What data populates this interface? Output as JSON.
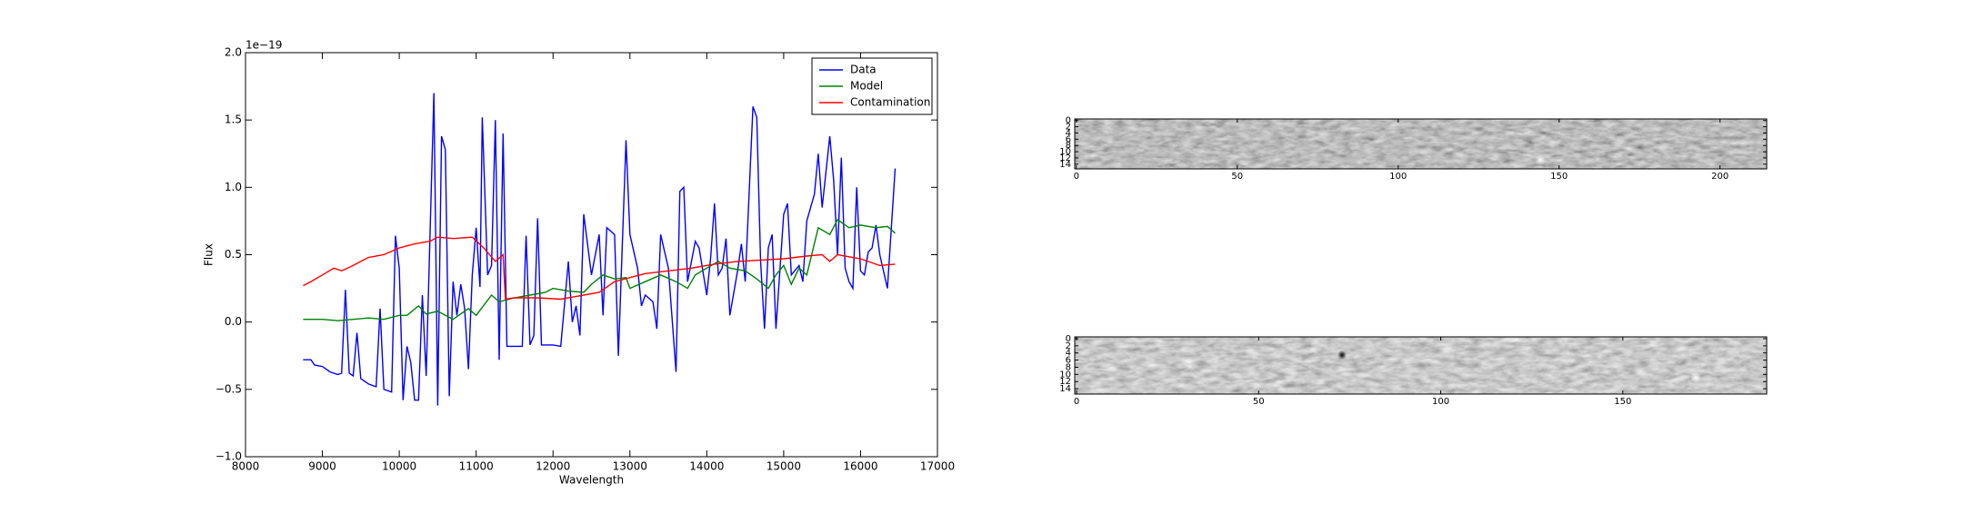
{
  "chart_data": [
    {
      "type": "line",
      "xlabel": "Wavelength",
      "ylabel": "Flux",
      "offset_label": "1e−19",
      "xlim": [
        8000,
        17000
      ],
      "xticks": [
        8000,
        9000,
        10000,
        11000,
        12000,
        13000,
        14000,
        15000,
        16000,
        17000
      ],
      "ylim": [
        -1.0,
        2.0
      ],
      "yticks": [
        {
          "value": -1.0,
          "label": "−1.0"
        },
        {
          "value": -0.5,
          "label": "−0.5"
        },
        {
          "value": 0.0,
          "label": "0.0"
        },
        {
          "value": 0.5,
          "label": "0.5"
        },
        {
          "value": 1.0,
          "label": "1.0"
        },
        {
          "value": 1.5,
          "label": "1.5"
        },
        {
          "value": 2.0,
          "label": "2.0"
        }
      ],
      "legend": "upper right",
      "series": [
        {
          "name": "Data",
          "color": "#0000ff",
          "x": [
            8750,
            8850,
            8900,
            9000,
            9100,
            9200,
            9250,
            9300,
            9350,
            9400,
            9450,
            9500,
            9600,
            9700,
            9750,
            9800,
            9900,
            9950,
            10000,
            10050,
            10100,
            10150,
            10200,
            10250,
            10300,
            10350,
            10450,
            10500,
            10550,
            10600,
            10650,
            10700,
            10750,
            10800,
            10850,
            10900,
            10950,
            11000,
            11050,
            11080,
            11150,
            11200,
            11250,
            11300,
            11350,
            11400,
            11500,
            11600,
            11650,
            11700,
            11750,
            11800,
            11850,
            12000,
            12100,
            12200,
            12250,
            12300,
            12350,
            12400,
            12500,
            12600,
            12650,
            12700,
            12800,
            12850,
            12950,
            13000,
            13100,
            13150,
            13200,
            13300,
            13350,
            13400,
            13500,
            13600,
            13650,
            13700,
            13750,
            13850,
            13900,
            14000,
            14050,
            14100,
            14150,
            14200,
            14250,
            14300,
            14400,
            14450,
            14500,
            14600,
            14650,
            14700,
            14750,
            14800,
            14850,
            14900,
            15000,
            15050,
            15100,
            15200,
            15250,
            15300,
            15400,
            15450,
            15500,
            15600,
            15650,
            15700,
            15750,
            15800,
            15850,
            15900,
            15950,
            16000,
            16050,
            16100,
            16150,
            16200,
            16250,
            16350,
            16400,
            16450
          ],
          "values": [
            -0.28,
            -0.28,
            -0.32,
            -0.33,
            -0.37,
            -0.39,
            -0.38,
            0.24,
            -0.38,
            -0.4,
            -0.08,
            -0.42,
            -0.46,
            -0.48,
            0.1,
            -0.5,
            -0.52,
            0.64,
            0.4,
            -0.58,
            -0.18,
            -0.3,
            -0.58,
            -0.58,
            0.2,
            -0.4,
            1.7,
            -0.62,
            1.38,
            1.28,
            -0.55,
            0.3,
            0.05,
            0.28,
            0.1,
            -0.35,
            0.35,
            0.7,
            0.26,
            1.52,
            0.35,
            0.42,
            1.5,
            -0.28,
            1.4,
            -0.18,
            -0.18,
            -0.18,
            0.64,
            -0.17,
            -0.1,
            0.77,
            -0.17,
            -0.17,
            -0.18,
            0.45,
            0.0,
            0.12,
            -0.1,
            0.8,
            0.35,
            0.65,
            0.05,
            0.7,
            0.65,
            -0.25,
            1.35,
            0.65,
            0.4,
            0.12,
            0.2,
            0.15,
            -0.05,
            0.65,
            0.4,
            -0.37,
            0.97,
            1.0,
            0.3,
            0.6,
            0.55,
            0.2,
            0.48,
            0.88,
            0.35,
            0.4,
            0.62,
            0.05,
            0.38,
            0.58,
            0.3,
            1.6,
            1.52,
            0.45,
            -0.05,
            0.55,
            0.65,
            -0.05,
            0.8,
            0.88,
            0.35,
            0.42,
            0.3,
            0.75,
            0.95,
            1.25,
            0.85,
            1.38,
            1.05,
            0.5,
            1.22,
            0.4,
            0.3,
            0.25,
            1.0,
            0.38,
            0.35,
            0.52,
            0.55,
            0.72,
            0.5,
            0.25,
            0.7,
            1.14
          ]
        },
        {
          "name": "Model",
          "color": "#008000",
          "x": [
            8750,
            9000,
            9200,
            9400,
            9600,
            9800,
            10000,
            10100,
            10250,
            10350,
            10500,
            10700,
            10900,
            11000,
            11200,
            11300,
            11500,
            11700,
            11900,
            12000,
            12200,
            12400,
            12500,
            12650,
            12800,
            12950,
            13000,
            13200,
            13400,
            13600,
            13750,
            13850,
            14000,
            14150,
            14300,
            14500,
            14650,
            14800,
            14900,
            15000,
            15100,
            15200,
            15300,
            15450,
            15600,
            15700,
            15850,
            16000,
            16200,
            16350,
            16450
          ],
          "values": [
            0.02,
            0.02,
            0.01,
            0.02,
            0.03,
            0.02,
            0.05,
            0.05,
            0.12,
            0.06,
            0.08,
            0.02,
            0.1,
            0.05,
            0.2,
            0.15,
            0.18,
            0.2,
            0.22,
            0.25,
            0.23,
            0.22,
            0.28,
            0.35,
            0.32,
            0.33,
            0.25,
            0.3,
            0.35,
            0.3,
            0.25,
            0.35,
            0.4,
            0.45,
            0.4,
            0.38,
            0.32,
            0.25,
            0.35,
            0.42,
            0.28,
            0.4,
            0.35,
            0.7,
            0.65,
            0.76,
            0.7,
            0.72,
            0.7,
            0.71,
            0.66
          ]
        },
        {
          "name": "Contamination",
          "color": "#ff0000",
          "x": [
            8750,
            8850,
            9000,
            9150,
            9250,
            9400,
            9500,
            9600,
            9800,
            10000,
            10200,
            10400,
            10500,
            10700,
            10950,
            11100,
            11250,
            11350,
            11380,
            11500,
            11800,
            12100,
            12400,
            12600,
            12800,
            13000,
            13200,
            13500,
            13800,
            14100,
            14400,
            14700,
            15000,
            15300,
            15500,
            15600,
            15700,
            16000,
            16250,
            16450
          ],
          "values": [
            0.27,
            0.3,
            0.35,
            0.4,
            0.38,
            0.42,
            0.45,
            0.48,
            0.5,
            0.55,
            0.58,
            0.6,
            0.63,
            0.62,
            0.63,
            0.55,
            0.45,
            0.5,
            0.17,
            0.18,
            0.18,
            0.17,
            0.2,
            0.22,
            0.3,
            0.33,
            0.36,
            0.38,
            0.4,
            0.43,
            0.45,
            0.46,
            0.47,
            0.49,
            0.5,
            0.45,
            0.5,
            0.47,
            0.42,
            0.43
          ]
        }
      ]
    },
    {
      "type": "image",
      "xlim": [
        -0.5,
        214.5
      ],
      "xticks": [
        0,
        50,
        100,
        150,
        200
      ],
      "ylim": [
        -0.5,
        15.5
      ],
      "yticks": [
        0,
        2,
        4,
        6,
        8,
        10,
        12,
        14
      ]
    },
    {
      "type": "image",
      "xlim": [
        -0.5,
        189.5
      ],
      "xticks": [
        0,
        50,
        100,
        150
      ],
      "ylim": [
        -0.5,
        15.5
      ],
      "yticks": [
        0,
        2,
        4,
        6,
        8,
        10,
        12,
        14
      ]
    }
  ]
}
